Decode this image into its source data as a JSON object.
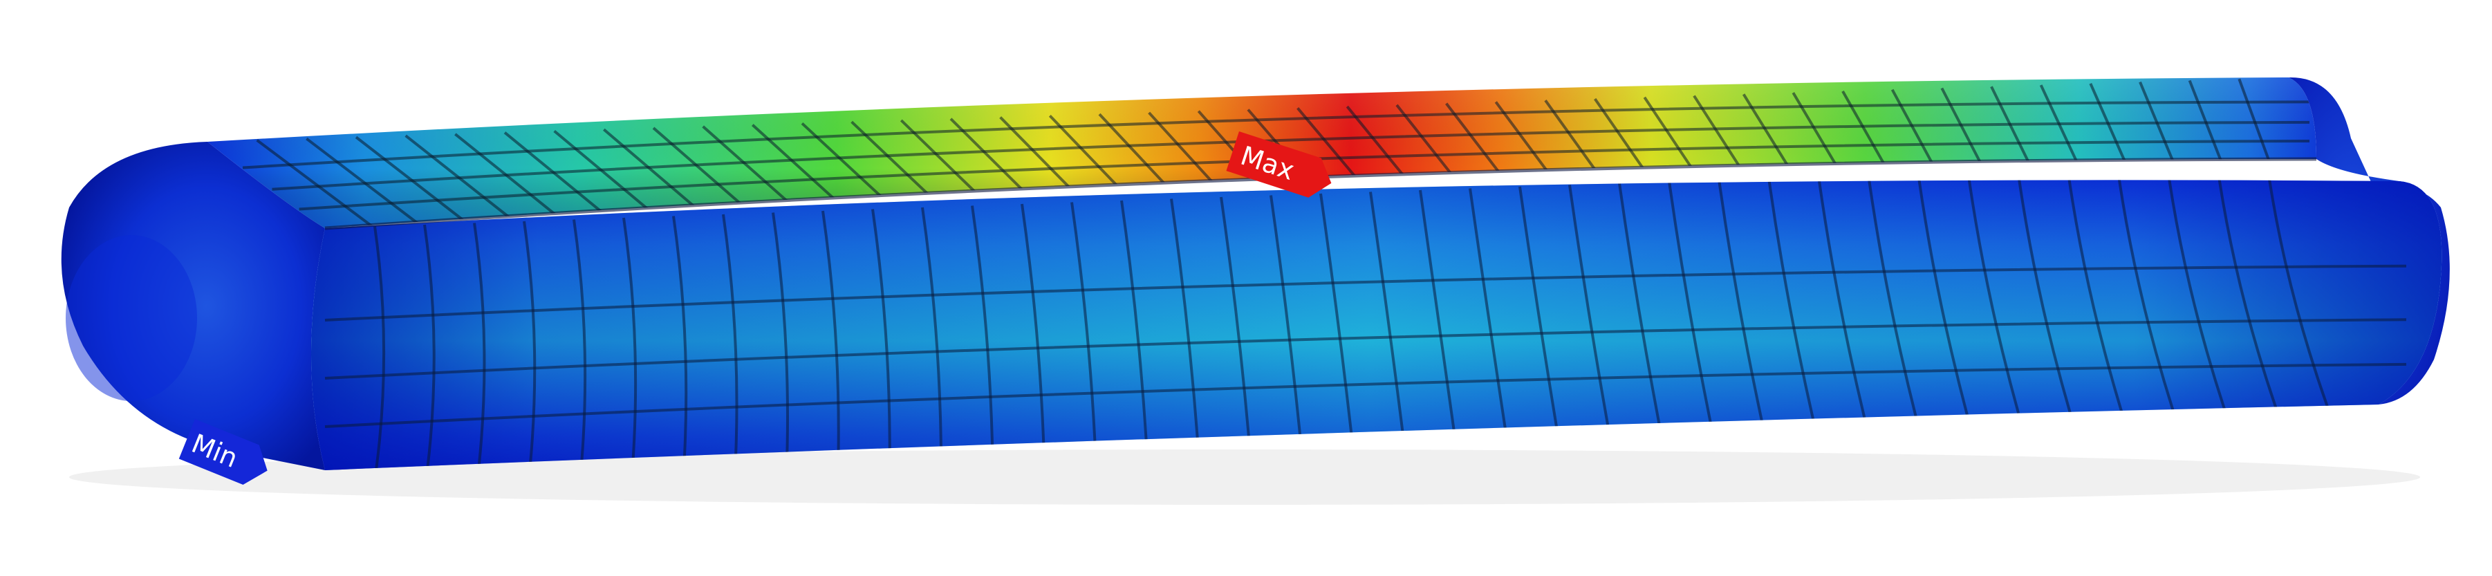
{
  "scene": {
    "model": "fea-stress-contour-cylinder",
    "colormap": [
      "#0a1fd6",
      "#1f7fe6",
      "#22c6c9",
      "#3ed34a",
      "#f1e21f",
      "#f08a12",
      "#e51616"
    ]
  },
  "probes": {
    "max": {
      "label": "Max",
      "color": "#e51616"
    },
    "min": {
      "label": "Min",
      "color": "#1427d8"
    }
  }
}
